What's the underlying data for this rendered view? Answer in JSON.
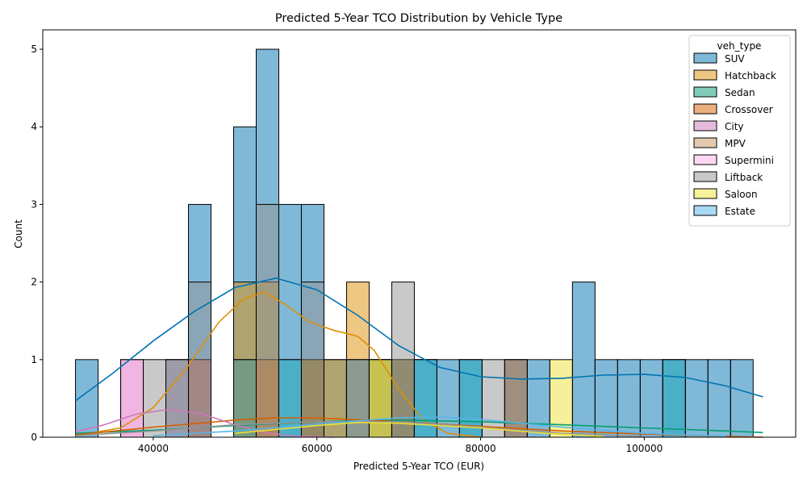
{
  "chart_data": {
    "type": "histogram",
    "title": "Predicted 5-Year TCO Distribution by Vehicle Type",
    "xlabel": "Predicted 5-Year TCO (EUR)",
    "ylabel": "Count",
    "xlim": [
      26500,
      118500
    ],
    "ylim": [
      0,
      5.25
    ],
    "xticks": [
      40000,
      60000,
      80000,
      100000
    ],
    "xtick_labels": [
      "40000",
      "60000",
      "80000",
      "100000"
    ],
    "yticks": [
      0,
      1,
      2,
      3,
      4,
      5
    ],
    "ytick_labels": [
      "0",
      "1",
      "2",
      "3",
      "4",
      "5"
    ],
    "bin_start": 30500,
    "bin_width": 2760,
    "legend": {
      "title": "veh_type",
      "placement": "upper right"
    },
    "kde": true,
    "series": [
      {
        "name": "SUV",
        "color": "#0173b2",
        "bins": [
          [
            0,
            1
          ],
          [
            5,
            3
          ],
          [
            7,
            4
          ],
          [
            8,
            5
          ],
          [
            9,
            3
          ],
          [
            10,
            3
          ],
          [
            11,
            1
          ],
          [
            12,
            1
          ],
          [
            14,
            1
          ],
          [
            15,
            1
          ],
          [
            16,
            1
          ],
          [
            17,
            1
          ],
          [
            19,
            1
          ],
          [
            20,
            1
          ],
          [
            22,
            2
          ],
          [
            23,
            1
          ],
          [
            24,
            1
          ],
          [
            25,
            1
          ],
          [
            26,
            1
          ],
          [
            27,
            1
          ],
          [
            28,
            1
          ],
          [
            29,
            1
          ]
        ],
        "kde": [
          [
            30500,
            0.47
          ],
          [
            35000,
            0.82
          ],
          [
            40000,
            1.24
          ],
          [
            45000,
            1.62
          ],
          [
            50000,
            1.93
          ],
          [
            55000,
            2.05
          ],
          [
            60000,
            1.9
          ],
          [
            65000,
            1.57
          ],
          [
            70000,
            1.18
          ],
          [
            75000,
            0.9
          ],
          [
            80000,
            0.78
          ],
          [
            85000,
            0.75
          ],
          [
            90000,
            0.76
          ],
          [
            95000,
            0.8
          ],
          [
            100000,
            0.81
          ],
          [
            105000,
            0.77
          ],
          [
            110000,
            0.66
          ],
          [
            114500,
            0.52
          ]
        ]
      },
      {
        "name": "Hatchback",
        "color": "#de8f05",
        "bins": [
          [
            5,
            1
          ],
          [
            7,
            2
          ],
          [
            8,
            2
          ],
          [
            10,
            1
          ],
          [
            11,
            1
          ],
          [
            12,
            2
          ],
          [
            13,
            1
          ]
        ],
        "kde": [
          [
            30500,
            0.02
          ],
          [
            36000,
            0.12
          ],
          [
            40000,
            0.38
          ],
          [
            44000,
            0.88
          ],
          [
            48000,
            1.48
          ],
          [
            51000,
            1.78
          ],
          [
            53500,
            1.87
          ],
          [
            56000,
            1.72
          ],
          [
            59000,
            1.49
          ],
          [
            62000,
            1.38
          ],
          [
            65000,
            1.3
          ],
          [
            67000,
            1.12
          ],
          [
            70000,
            0.62
          ],
          [
            73000,
            0.22
          ],
          [
            76000,
            0.05
          ],
          [
            80000,
            0.0
          ]
        ]
      },
      {
        "name": "Sedan",
        "color": "#029e73",
        "bins": [
          [
            4,
            1
          ],
          [
            5,
            1
          ],
          [
            7,
            1
          ],
          [
            9,
            1
          ],
          [
            10,
            1
          ],
          [
            13,
            1
          ],
          [
            14,
            1
          ],
          [
            15,
            1
          ],
          [
            17,
            1
          ],
          [
            26,
            1
          ]
        ],
        "kde": [
          [
            30500,
            0.05
          ],
          [
            40000,
            0.09
          ],
          [
            50000,
            0.15
          ],
          [
            60000,
            0.2
          ],
          [
            70000,
            0.22
          ],
          [
            80000,
            0.2
          ],
          [
            90000,
            0.16
          ],
          [
            100000,
            0.12
          ],
          [
            110000,
            0.08
          ],
          [
            114500,
            0.06
          ]
        ]
      },
      {
        "name": "Crossover",
        "color": "#d55e00",
        "bins": [
          [
            5,
            1
          ],
          [
            8,
            1
          ],
          [
            10,
            1
          ],
          [
            12,
            1
          ],
          [
            14,
            1
          ],
          [
            19,
            1
          ]
        ],
        "kde": [
          [
            30500,
            0.03
          ],
          [
            40000,
            0.13
          ],
          [
            50000,
            0.22
          ],
          [
            55000,
            0.25
          ],
          [
            60000,
            0.25
          ],
          [
            70000,
            0.2
          ],
          [
            80000,
            0.14
          ],
          [
            90000,
            0.08
          ],
          [
            100000,
            0.04
          ],
          [
            110000,
            0.01
          ],
          [
            114500,
            0.0
          ]
        ]
      },
      {
        "name": "City",
        "color": "#cc78bc",
        "bins": [
          [
            2,
            1
          ],
          [
            4,
            1
          ],
          [
            5,
            1
          ]
        ],
        "kde": [
          [
            30500,
            0.07
          ],
          [
            34000,
            0.16
          ],
          [
            38000,
            0.3
          ],
          [
            42000,
            0.36
          ],
          [
            46000,
            0.3
          ],
          [
            50000,
            0.16
          ],
          [
            54000,
            0.05
          ],
          [
            58000,
            0.01
          ],
          [
            62000,
            0.0
          ]
        ]
      },
      {
        "name": "MPV",
        "color": "#ca9161",
        "bins": [
          [
            13,
            1
          ]
        ],
        "kde": []
      },
      {
        "name": "Supermini",
        "color": "#fbafe4",
        "bins": [
          [
            2,
            1
          ]
        ],
        "kde": []
      },
      {
        "name": "Liftback",
        "color": "#949494",
        "bins": [
          [
            3,
            1
          ],
          [
            4,
            1
          ],
          [
            5,
            2
          ],
          [
            7,
            1
          ],
          [
            8,
            3
          ],
          [
            10,
            2
          ],
          [
            14,
            2
          ],
          [
            18,
            1
          ],
          [
            19,
            1
          ]
        ],
        "kde": [
          [
            30500,
            0.02
          ],
          [
            40000,
            0.08
          ],
          [
            50000,
            0.16
          ],
          [
            60000,
            0.2
          ],
          [
            70000,
            0.2
          ],
          [
            80000,
            0.13
          ],
          [
            90000,
            0.05
          ],
          [
            100000,
            0.01
          ]
        ]
      },
      {
        "name": "Saloon",
        "color": "#ece133",
        "bins": [
          [
            13,
            1
          ],
          [
            21,
            1
          ]
        ],
        "kde": [
          [
            50000,
            0.05
          ],
          [
            60000,
            0.15
          ],
          [
            65000,
            0.19
          ],
          [
            70000,
            0.18
          ],
          [
            80000,
            0.12
          ],
          [
            88000,
            0.05
          ],
          [
            95000,
            0.01
          ]
        ]
      },
      {
        "name": "Estate",
        "color": "#56b4e9",
        "bins": [
          [
            9,
            1
          ],
          [
            12,
            1
          ],
          [
            15,
            1
          ],
          [
            17,
            1
          ],
          [
            26,
            1
          ]
        ],
        "kde": [
          [
            40000,
            0.02
          ],
          [
            50000,
            0.08
          ],
          [
            60000,
            0.17
          ],
          [
            70000,
            0.25
          ],
          [
            75000,
            0.26
          ],
          [
            80000,
            0.23
          ],
          [
            90000,
            0.13
          ],
          [
            100000,
            0.05
          ],
          [
            110000,
            0.01
          ]
        ]
      }
    ]
  }
}
